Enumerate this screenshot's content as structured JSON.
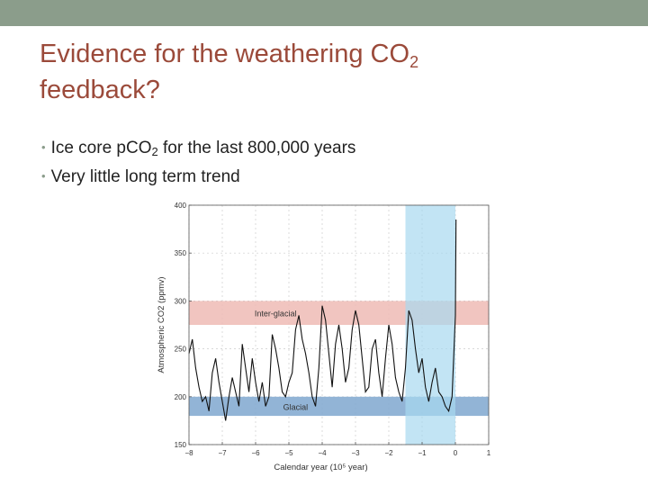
{
  "slide": {
    "title_line1": "Evidence for the weathering CO",
    "title_sub": "2",
    "title_line2": "feedback?",
    "bullets": [
      {
        "text": "Ice core pCO",
        "sub": "2",
        "rest": " for the last 800,000 years"
      },
      {
        "text": "Very little long term trend",
        "sub": "",
        "rest": ""
      }
    ]
  },
  "colors": {
    "top_bar": "#8b9d8b",
    "title": "#9b4a3a",
    "interglacial_band": "#eebbb5",
    "glacial_band": "#7fa7cf",
    "recent_band": "#a8d8f0",
    "line": "#111111"
  },
  "chart_data": {
    "type": "line",
    "xlabel": "Calendar year (10⁵ year)",
    "ylabel": "Atmospheric CO2 (ppmv)",
    "xlim": [
      -8,
      1
    ],
    "ylim": [
      150,
      400
    ],
    "xticks": [
      -8,
      -7,
      -6,
      -5,
      -4,
      -3,
      -2,
      -1,
      0,
      1
    ],
    "yticks": [
      150,
      200,
      250,
      300,
      350,
      400
    ],
    "grid": true,
    "bands": [
      {
        "label": "Inter-glacial",
        "y_range": [
          275,
          300
        ],
        "color": "#eebbb5"
      },
      {
        "label": "Glacial",
        "y_range": [
          180,
          200
        ],
        "color": "#7fa7cf"
      },
      {
        "label": "",
        "x_range": [
          -1.5,
          0
        ],
        "color": "#a8d8f0"
      }
    ],
    "series": [
      {
        "x": [
          -8.0,
          -7.9,
          -7.8,
          -7.7,
          -7.6,
          -7.5,
          -7.4,
          -7.3,
          -7.2,
          -7.1,
          -7.0,
          -6.9,
          -6.8,
          -6.7,
          -6.6,
          -6.5,
          -6.4,
          -6.3,
          -6.2,
          -6.1,
          -6.0,
          -5.9,
          -5.8,
          -5.7,
          -5.6,
          -5.5,
          -5.4,
          -5.3,
          -5.2,
          -5.1,
          -5.0,
          -4.9,
          -4.8,
          -4.7,
          -4.6,
          -4.5,
          -4.4,
          -4.3,
          -4.2,
          -4.1,
          -4.0,
          -3.9,
          -3.8,
          -3.7,
          -3.6,
          -3.5,
          -3.4,
          -3.3,
          -3.2,
          -3.1,
          -3.0,
          -2.9,
          -2.8,
          -2.7,
          -2.6,
          -2.5,
          -2.4,
          -2.3,
          -2.2,
          -2.1,
          -2.0,
          -1.9,
          -1.8,
          -1.7,
          -1.6,
          -1.5,
          -1.4,
          -1.3,
          -1.2,
          -1.1,
          -1.0,
          -0.9,
          -0.8,
          -0.7,
          -0.6,
          -0.5,
          -0.4,
          -0.3,
          -0.2,
          -0.1,
          0.0,
          0.02
        ],
        "values": [
          245,
          260,
          230,
          210,
          195,
          200,
          185,
          225,
          240,
          215,
          195,
          175,
          200,
          220,
          205,
          190,
          255,
          230,
          205,
          240,
          215,
          195,
          215,
          190,
          200,
          265,
          250,
          230,
          205,
          200,
          215,
          225,
          270,
          285,
          260,
          245,
          225,
          200,
          190,
          230,
          295,
          280,
          245,
          210,
          255,
          275,
          250,
          215,
          230,
          270,
          290,
          275,
          240,
          205,
          210,
          250,
          260,
          225,
          200,
          240,
          275,
          255,
          220,
          205,
          195,
          230,
          290,
          280,
          250,
          225,
          240,
          210,
          195,
          215,
          230,
          205,
          200,
          190,
          185,
          200,
          285,
          385
        ]
      }
    ],
    "annotations": [
      "Inter-glacial",
      "Glacial"
    ]
  }
}
